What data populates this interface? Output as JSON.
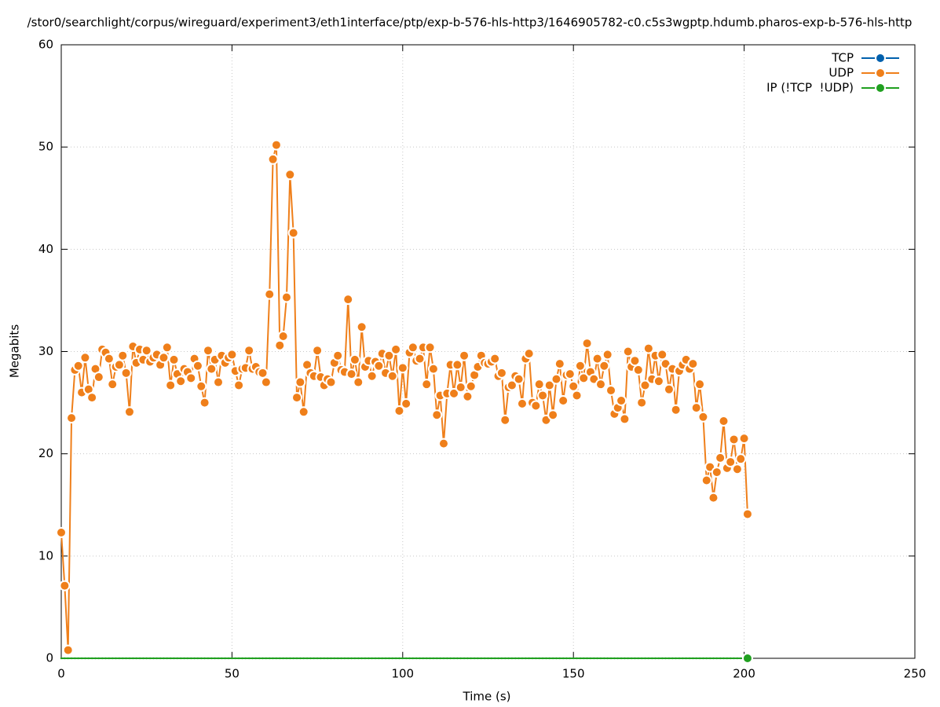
{
  "chart_data": {
    "type": "line",
    "title": "/stor0/searchlight/corpus/wireguard/experiment3/eth1interface/ptp/exp-b-576-hls-http3/1646905782-c0.c5s3wgptp.hdumb.pharos-exp-b-576-hls-http",
    "x_label": "Time (s)",
    "y_label": "Megabits",
    "xlim": [
      0,
      250
    ],
    "xticks": [
      0,
      50,
      100,
      150,
      200,
      250
    ],
    "ylim": [
      0,
      60
    ],
    "yticks": [
      0,
      10,
      20,
      30,
      40,
      50,
      60
    ],
    "grid": true,
    "legend": "top-right",
    "x": [
      0,
      1,
      2,
      3,
      4,
      5,
      6,
      7,
      8,
      9,
      10,
      11,
      12,
      13,
      14,
      15,
      16,
      17,
      18,
      19,
      20,
      21,
      22,
      23,
      24,
      25,
      26,
      27,
      28,
      29,
      30,
      31,
      32,
      33,
      34,
      35,
      36,
      37,
      38,
      39,
      40,
      41,
      42,
      43,
      44,
      45,
      46,
      47,
      48,
      49,
      50,
      51,
      52,
      53,
      54,
      55,
      56,
      57,
      58,
      59,
      60,
      61,
      62,
      63,
      64,
      65,
      66,
      67,
      68,
      69,
      70,
      71,
      72,
      73,
      74,
      75,
      76,
      77,
      78,
      79,
      80,
      81,
      82,
      83,
      84,
      85,
      86,
      87,
      88,
      89,
      90,
      91,
      92,
      93,
      94,
      95,
      96,
      97,
      98,
      99,
      100,
      101,
      102,
      103,
      104,
      105,
      106,
      107,
      108,
      109,
      110,
      111,
      112,
      113,
      114,
      115,
      116,
      117,
      118,
      119,
      120,
      121,
      122,
      123,
      124,
      125,
      126,
      127,
      128,
      129,
      130,
      131,
      132,
      133,
      134,
      135,
      136,
      137,
      138,
      139,
      140,
      141,
      142,
      143,
      144,
      145,
      146,
      147,
      148,
      149,
      150,
      151,
      152,
      153,
      154,
      155,
      156,
      157,
      158,
      159,
      160,
      161,
      162,
      163,
      164,
      165,
      166,
      167,
      168,
      169,
      170,
      171,
      172,
      173,
      174,
      175,
      176,
      177,
      178,
      179,
      180,
      181,
      182,
      183,
      184,
      185,
      186,
      187,
      188,
      189,
      190,
      191,
      192,
      193,
      194,
      195,
      196,
      197,
      198,
      199,
      200,
      201
    ],
    "series": [
      {
        "name": "TCP",
        "color": "#0060ad",
        "values": [
          null,
          null,
          null,
          null,
          null,
          null,
          null,
          null,
          null,
          null,
          null,
          null,
          null,
          null,
          null,
          null,
          null,
          null,
          null,
          null,
          null,
          null,
          null,
          null,
          null,
          null,
          null,
          null,
          null,
          null,
          null,
          null,
          null,
          null,
          null,
          null,
          null,
          null,
          null,
          null,
          null,
          null,
          null,
          null,
          null,
          null,
          null,
          null,
          null,
          null,
          null,
          null,
          null,
          null,
          null,
          null,
          null,
          null,
          null,
          null,
          null,
          null,
          null,
          null,
          null,
          null,
          null,
          null,
          null,
          null,
          null,
          null,
          null,
          null,
          null,
          null,
          null,
          null,
          null,
          null,
          null,
          null,
          null,
          null,
          null,
          null,
          null,
          null,
          null,
          null,
          null,
          null,
          null,
          null,
          null,
          null,
          null,
          null,
          null,
          null,
          null,
          null,
          null,
          null,
          null,
          null,
          null,
          null,
          null,
          null,
          null,
          null,
          null,
          null,
          null,
          null,
          null,
          null,
          null,
          null,
          null,
          null,
          null,
          null,
          null,
          null,
          null,
          null,
          null,
          null,
          null,
          null,
          null,
          null,
          null,
          null,
          null,
          null,
          null,
          null,
          null,
          null,
          null,
          null,
          null,
          null,
          null,
          null,
          null,
          null,
          null,
          null,
          null,
          null,
          null,
          null,
          null,
          null,
          null,
          null,
          null,
          null,
          null,
          null,
          null,
          null,
          null,
          null,
          null,
          null,
          null,
          null,
          null,
          null,
          null,
          null,
          null,
          null,
          null,
          null,
          null,
          null,
          null,
          null,
          null,
          null,
          null,
          null,
          null,
          null,
          null,
          null,
          null,
          null,
          null,
          null,
          null,
          null,
          null,
          null,
          null,
          null
        ]
      },
      {
        "name": "UDP",
        "color": "#ef7f1a",
        "values": [
          12.3,
          7.1,
          0.8,
          23.5,
          28.2,
          28.6,
          26.0,
          29.4,
          26.3,
          25.5,
          28.3,
          27.5,
          30.2,
          29.9,
          29.3,
          26.8,
          28.5,
          28.7,
          29.6,
          27.9,
          24.1,
          30.5,
          28.9,
          30.2,
          29.2,
          30.1,
          29.0,
          29.4,
          29.7,
          28.7,
          29.4,
          30.4,
          26.7,
          29.2,
          27.8,
          27.1,
          28.3,
          28.0,
          27.4,
          29.3,
          28.6,
          26.6,
          25.0,
          30.1,
          28.3,
          29.2,
          27.0,
          29.6,
          28.9,
          29.4,
          29.7,
          28.1,
          26.7,
          28.3,
          28.4,
          30.1,
          28.3,
          28.5,
          28.0,
          27.9,
          27.0,
          35.6,
          48.8,
          50.2,
          30.6,
          31.5,
          35.3,
          47.3,
          41.6,
          25.5,
          27.0,
          24.1,
          28.7,
          27.9,
          27.6,
          30.1,
          27.5,
          26.7,
          27.3,
          27.0,
          28.9,
          29.6,
          28.2,
          28.0,
          35.1,
          27.8,
          29.2,
          27.0,
          32.4,
          28.5,
          29.1,
          27.6,
          29.0,
          28.6,
          29.8,
          27.9,
          29.6,
          27.6,
          30.2,
          24.2,
          28.4,
          24.9,
          29.9,
          30.4,
          29.1,
          29.3,
          30.4,
          26.8,
          30.4,
          28.3,
          23.8,
          25.7,
          21.0,
          25.9,
          28.7,
          25.9,
          28.7,
          26.5,
          29.6,
          25.6,
          26.6,
          27.7,
          28.5,
          29.6,
          28.9,
          28.8,
          29.0,
          29.3,
          27.6,
          27.9,
          23.3,
          26.5,
          26.7,
          27.6,
          27.3,
          24.9,
          29.3,
          29.8,
          25.0,
          24.7,
          26.8,
          25.7,
          23.3,
          26.7,
          23.8,
          27.3,
          28.8,
          25.2,
          27.7,
          27.8,
          26.6,
          25.7,
          28.6,
          27.4,
          30.8,
          28.0,
          27.3,
          29.3,
          26.8,
          28.6,
          29.7,
          26.2,
          23.9,
          24.5,
          25.2,
          23.4,
          30.0,
          28.5,
          29.1,
          28.2,
          25.0,
          26.7,
          30.3,
          27.3,
          29.6,
          27.1,
          29.7,
          28.8,
          26.3,
          28.3,
          24.3,
          28.1,
          28.7,
          29.2,
          28.3,
          28.8,
          24.5,
          26.8,
          23.6,
          17.4,
          18.7,
          15.7,
          18.2,
          19.6,
          23.2,
          18.6,
          19.2,
          21.4,
          18.5,
          19.5,
          21.5,
          14.1
        ]
      },
      {
        "name": "IP (!TCP  !UDP)",
        "color": "#20a020",
        "values": [
          0,
          0,
          0,
          0,
          0,
          0,
          0,
          0,
          0,
          0,
          0,
          0,
          0,
          0,
          0,
          0,
          0,
          0,
          0,
          0,
          0,
          0,
          0,
          0,
          0,
          0,
          0,
          0,
          0,
          0,
          0,
          0,
          0,
          0,
          0,
          0,
          0,
          0,
          0,
          0,
          0,
          0,
          0,
          0,
          0,
          0,
          0,
          0,
          0,
          0,
          0,
          0,
          0,
          0,
          0,
          0,
          0,
          0,
          0,
          0,
          0,
          0,
          0,
          0,
          0,
          0,
          0,
          0,
          0,
          0,
          0,
          0,
          0,
          0,
          0,
          0,
          0,
          0,
          0,
          0,
          0,
          0,
          0,
          0,
          0,
          0,
          0,
          0,
          0,
          0,
          0,
          0,
          0,
          0,
          0,
          0,
          0,
          0,
          0,
          0,
          0,
          0,
          0,
          0,
          0,
          0,
          0,
          0,
          0,
          0,
          0,
          0,
          0,
          0,
          0,
          0,
          0,
          0,
          0,
          0,
          0,
          0,
          0,
          0,
          0,
          0,
          0,
          0,
          0,
          0,
          0,
          0,
          0,
          0,
          0,
          0,
          0,
          0,
          0,
          0,
          0,
          0,
          0,
          0,
          0,
          0,
          0,
          0,
          0,
          0,
          0,
          0,
          0,
          0,
          0,
          0,
          0,
          0,
          0,
          0,
          0,
          0,
          0,
          0,
          0,
          0,
          0,
          0,
          0,
          0,
          0,
          0,
          0,
          0,
          0,
          0,
          0,
          0,
          0,
          0,
          0,
          0,
          0,
          0,
          0,
          0,
          0,
          0,
          0,
          0,
          0,
          0,
          0,
          0,
          0,
          0,
          0,
          0,
          0,
          0,
          0,
          0
        ]
      }
    ]
  }
}
